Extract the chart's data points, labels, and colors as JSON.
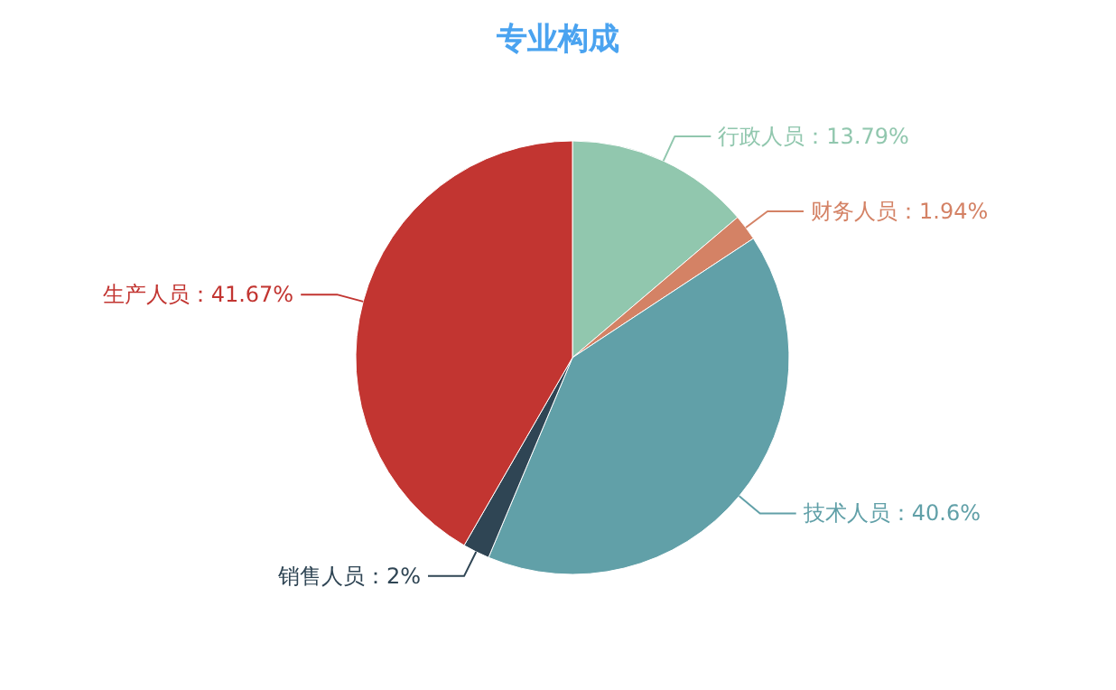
{
  "chart_data": {
    "type": "pie",
    "title": "专业构成",
    "categories": [
      "行政人员",
      "财务人员",
      "技术人员",
      "销售人员",
      "生产人员"
    ],
    "values": [
      13.79,
      1.94,
      40.6,
      2,
      41.67
    ],
    "value_labels": [
      "13.79%",
      "1.94%",
      "40.6%",
      "2%",
      "41.67%"
    ],
    "colors": [
      "#91c7ae",
      "#d48265",
      "#61a0a8",
      "#2f4554",
      "#c23531"
    ]
  }
}
